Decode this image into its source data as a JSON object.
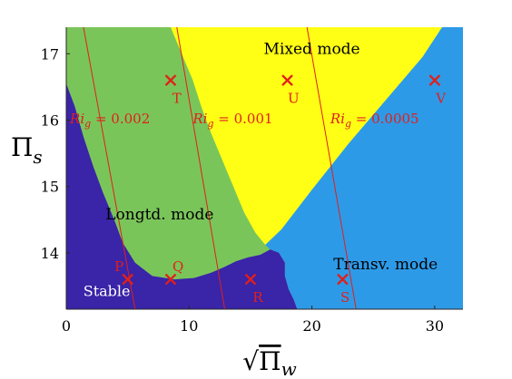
{
  "chart_data": {
    "type": "heatmap",
    "xlabel": "√Πw",
    "ylabel": "Πs",
    "xlim": [
      0,
      32.3
    ],
    "ylim": [
      13.15,
      17.4
    ],
    "xticks": [
      0,
      10,
      20,
      30
    ],
    "yticks": [
      14,
      15,
      16,
      17
    ],
    "colors": {
      "stable": "#3a24a8",
      "longitudinal": "#7ac55a",
      "mixed": "#ffff16",
      "transverse": "#2d9ae8",
      "ri_line": "#e0201a",
      "marker": "#e0201a"
    },
    "regions": [
      {
        "key": "stable",
        "label": "Stable",
        "label_at": [
          3.3,
          13.35
        ]
      },
      {
        "key": "longitudinal",
        "label": "Longtd. mode",
        "label_at": [
          7.6,
          14.5
        ]
      },
      {
        "key": "mixed",
        "label": "Mixed mode",
        "label_at": [
          20.0,
          17.0
        ]
      },
      {
        "key": "transverse",
        "label": "Transv. mode",
        "label_at": [
          26.0,
          13.75
        ]
      }
    ],
    "boundaries": {
      "stable_top": [
        [
          0,
          16.55
        ],
        [
          0.7,
          16.2
        ],
        [
          1.4,
          15.75
        ],
        [
          2.2,
          15.3
        ],
        [
          3.0,
          14.9
        ],
        [
          3.9,
          14.5
        ],
        [
          4.6,
          14.15
        ],
        [
          5.6,
          13.85
        ],
        [
          7.0,
          13.65
        ],
        [
          8.8,
          13.6
        ],
        [
          10.4,
          13.62
        ],
        [
          11.8,
          13.7
        ],
        [
          12.8,
          13.78
        ],
        [
          13.8,
          13.87
        ],
        [
          14.8,
          13.93
        ],
        [
          15.8,
          13.97
        ],
        [
          16.6,
          14.05
        ],
        [
          17.3,
          14.0
        ],
        [
          17.8,
          13.85
        ],
        [
          17.8,
          13.65
        ],
        [
          18.1,
          13.45
        ],
        [
          18.5,
          13.3
        ],
        [
          18.8,
          13.15
        ]
      ],
      "longitudinal_right": [
        [
          8.5,
          17.4
        ],
        [
          9.4,
          17.0
        ],
        [
          10.3,
          16.6
        ],
        [
          11.0,
          16.2
        ],
        [
          11.8,
          15.8
        ],
        [
          12.7,
          15.4
        ],
        [
          13.6,
          15.0
        ],
        [
          14.5,
          14.6
        ],
        [
          15.4,
          14.3
        ],
        [
          16.2,
          14.12
        ]
      ],
      "mixed_right": [
        [
          30.6,
          17.4
        ],
        [
          29.0,
          16.95
        ],
        [
          26.0,
          16.3
        ],
        [
          23.0,
          15.65
        ],
        [
          20.0,
          14.95
        ],
        [
          17.5,
          14.35
        ],
        [
          16.2,
          14.12
        ]
      ]
    },
    "ri_lines": [
      {
        "label": "Ri_g = 0.002",
        "sub": "g",
        "value": "0.002",
        "points": [
          [
            1.4,
            17.4
          ],
          [
            5.6,
            13.15
          ]
        ],
        "label_at": [
          0.3,
          15.95
        ]
      },
      {
        "label": "Ri_g = 0.001",
        "sub": "g",
        "value": "0.001",
        "points": [
          [
            9.0,
            17.4
          ],
          [
            12.9,
            13.15
          ]
        ],
        "label_at": [
          10.3,
          15.95
        ]
      },
      {
        "label": "Ri_g = 0.0005",
        "sub": "g",
        "value": "0.0005",
        "points": [
          [
            19.6,
            17.4
          ],
          [
            23.6,
            13.15
          ]
        ],
        "label_at": [
          21.5,
          15.95
        ]
      }
    ],
    "points": [
      {
        "name": "P",
        "x": 5.0,
        "y": 13.6,
        "label_dx": -0.7,
        "label_dy": 0.19
      },
      {
        "name": "Q",
        "x": 8.5,
        "y": 13.6,
        "label_dx": 0.6,
        "label_dy": 0.19
      },
      {
        "name": "R",
        "x": 15.0,
        "y": 13.6,
        "label_dx": 0.6,
        "label_dy": -0.27
      },
      {
        "name": "S",
        "x": 22.5,
        "y": 13.6,
        "label_dx": 0.2,
        "label_dy": -0.27
      },
      {
        "name": "T",
        "x": 8.5,
        "y": 16.6,
        "label_dx": 0.5,
        "label_dy": -0.27
      },
      {
        "name": "U",
        "x": 18.0,
        "y": 16.6,
        "label_dx": 0.5,
        "label_dy": -0.27
      },
      {
        "name": "V",
        "x": 30.0,
        "y": 16.6,
        "label_dx": 0.5,
        "label_dy": -0.27
      }
    ]
  }
}
